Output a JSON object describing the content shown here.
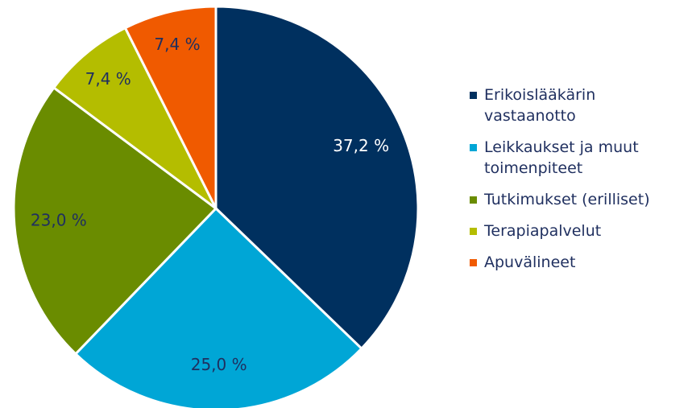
{
  "chart_data": {
    "type": "pie",
    "categories": [
      "Erikoislääkärin vastaanotto",
      "Leikkaukset ja muut toimenpiteet",
      "Tutkimukset (erilliset)",
      "Terapiapalvelut",
      "Apuvälineet"
    ],
    "values": [
      37.2,
      25.0,
      23.0,
      7.4,
      7.4
    ],
    "value_labels": [
      "37,2 %",
      "25,0 %",
      "23,0 %",
      "7,4 %",
      "7,4 %"
    ],
    "colors": [
      "#00305f",
      "#00a6d6",
      "#6a8c00",
      "#b4bd00",
      "#f05a00"
    ],
    "label_colors": [
      "#ffffff",
      "#1f2f5f",
      "#1f2f5f",
      "#1f2f5f",
      "#1f2f5f"
    ],
    "legend": "right"
  }
}
